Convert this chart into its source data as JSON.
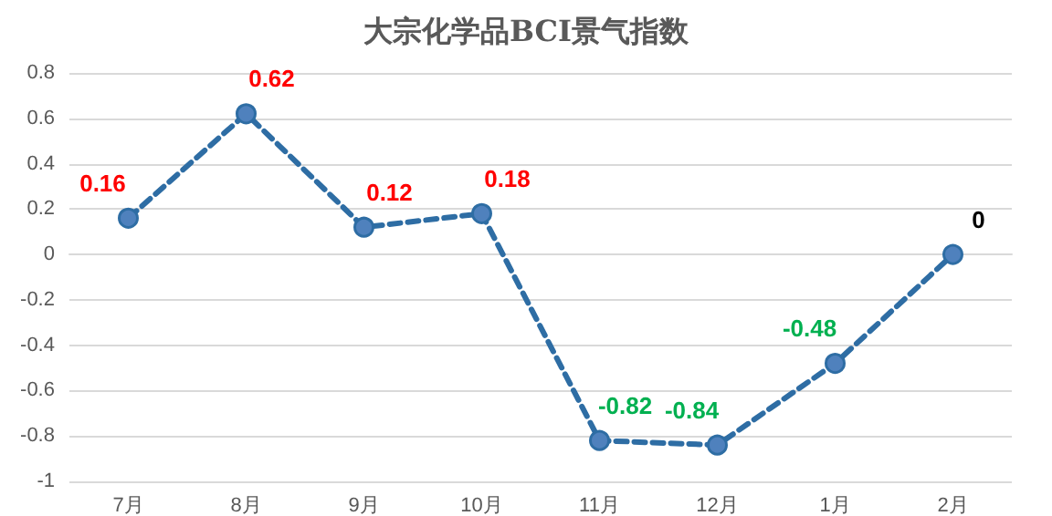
{
  "chart_data": {
    "type": "line",
    "title": "大宗化学品BCI景气指数",
    "categories": [
      "7月",
      "8月",
      "9月",
      "10月",
      "11月",
      "12月",
      "1月",
      "2月"
    ],
    "series": [
      {
        "color": "#2e6da4",
        "values": [
          0.16,
          0.62,
          0.12,
          0.18,
          -0.82,
          -0.84,
          -0.48,
          0
        ]
      }
    ],
    "ylim": [
      -1,
      0.8
    ],
    "yticks": [
      -1,
      -0.8,
      -0.6,
      -0.4,
      -0.2,
      0,
      0.2,
      0.4,
      0.6,
      0.8
    ],
    "grid": "y",
    "marker": "circle",
    "line_style": "dashed",
    "data_labels": true
  }
}
